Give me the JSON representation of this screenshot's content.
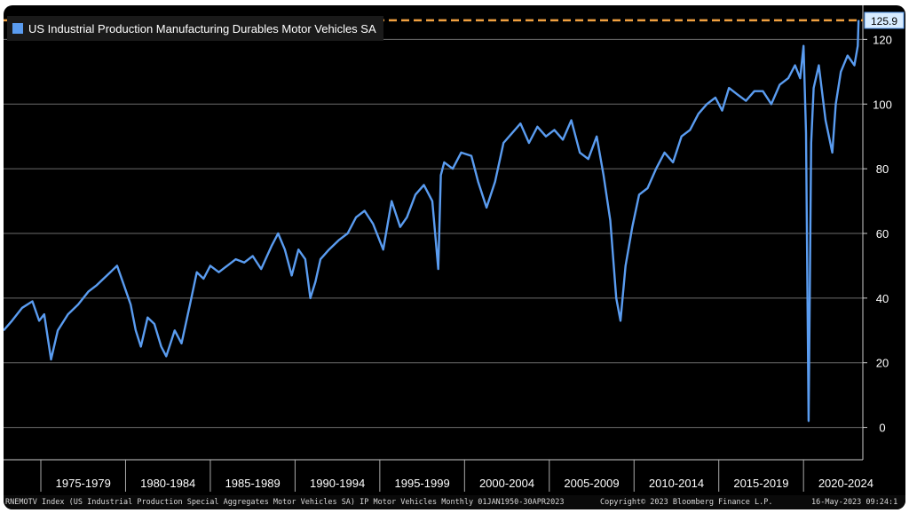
{
  "chart_data": {
    "type": "line",
    "title": "US Industrial Production Manufacturing Durables Motor Vehicles SA",
    "series": [
      {
        "name": "US Industrial Production Manufacturing Durables Motor Vehicles SA",
        "color": "#5a9cf0",
        "x": [
          1972.8,
          1973.3,
          1973.9,
          1974.5,
          1974.9,
          1975.2,
          1975.6,
          1976.0,
          1976.6,
          1977.2,
          1977.8,
          1978.3,
          1978.7,
          1979.1,
          1979.5,
          1979.9,
          1980.3,
          1980.6,
          1980.9,
          1981.3,
          1981.7,
          1982.1,
          1982.4,
          1982.9,
          1983.3,
          1983.8,
          1984.2,
          1984.6,
          1985.0,
          1985.5,
          1986.0,
          1986.5,
          1987.0,
          1987.5,
          1988.0,
          1988.6,
          1989.0,
          1989.4,
          1989.8,
          1990.2,
          1990.6,
          1990.9,
          1991.2,
          1991.5,
          1992.0,
          1992.6,
          1993.1,
          1993.6,
          1994.1,
          1994.6,
          1995.2,
          1995.7,
          1996.2,
          1996.6,
          1997.1,
          1997.6,
          1998.1,
          1998.45,
          1998.6,
          1998.8,
          1999.3,
          1999.8,
          2000.4,
          2000.8,
          2001.3,
          2001.8,
          2002.3,
          2002.8,
          2003.3,
          2003.8,
          2004.3,
          2004.8,
          2005.3,
          2005.8,
          2006.3,
          2006.8,
          2007.3,
          2007.8,
          2008.2,
          2008.6,
          2008.95,
          2009.2,
          2009.5,
          2009.9,
          2010.3,
          2010.8,
          2011.3,
          2011.8,
          2012.3,
          2012.8,
          2013.3,
          2013.8,
          2014.3,
          2014.8,
          2015.2,
          2015.6,
          2016.1,
          2016.6,
          2017.1,
          2017.6,
          2018.1,
          2018.6,
          2019.1,
          2019.5,
          2019.8,
          2020.0,
          2020.15,
          2020.3,
          2020.45,
          2020.6,
          2020.9,
          2021.3,
          2021.7,
          2021.9,
          2022.2,
          2022.6,
          2023.0,
          2023.2,
          2023.25
        ],
        "values": [
          30,
          33,
          37,
          39,
          33,
          35,
          21,
          30,
          35,
          38,
          42,
          44,
          46,
          48,
          50,
          44,
          38,
          30,
          25,
          34,
          32,
          25,
          22,
          30,
          26,
          38,
          48,
          46,
          50,
          48,
          50,
          52,
          51,
          53,
          49,
          56,
          60,
          55,
          47,
          55,
          52,
          40,
          45,
          52,
          55,
          58,
          60,
          65,
          67,
          63,
          55,
          70,
          62,
          65,
          72,
          75,
          70,
          49,
          78,
          82,
          80,
          85,
          84,
          76,
          68,
          76,
          88,
          91,
          94,
          88,
          93,
          90,
          92,
          89,
          95,
          85,
          83,
          90,
          78,
          64,
          40,
          33,
          50,
          62,
          72,
          74,
          80,
          85,
          82,
          90,
          92,
          97,
          100,
          102,
          98,
          105,
          103,
          101,
          104,
          104,
          100,
          106,
          108,
          112,
          108,
          118,
          91,
          2,
          88,
          105,
          112,
          95,
          85,
          100,
          110,
          115,
          112,
          118,
          126
        ],
        "max_annotation": 125.9
      }
    ],
    "yticks": [
      0,
      20,
      40,
      60,
      80,
      100,
      120
    ],
    "ylim": [
      -10,
      130
    ],
    "xlim": [
      1972.8,
      2023.5
    ],
    "period_labels": [
      "1975-1979",
      "1980-1984",
      "1985-1989",
      "1990-1994",
      "1995-1999",
      "2000-2004",
      "2005-2009",
      "2010-2014",
      "2015-2019",
      "2020-2024"
    ],
    "reference_line": {
      "value": 125.9,
      "label": "125.9",
      "color": "#f0a040"
    },
    "grid": true
  },
  "footer": {
    "left": "RNEMOTV Index (US Industrial Production Special Aggregates Motor Vehicles SA) IP Motor Vehicles  Monthly 01JAN1950-30APR2023",
    "center": "Copyright© 2023 Bloomberg Finance L.P.",
    "right": "16-May-2023 09:24:1"
  }
}
